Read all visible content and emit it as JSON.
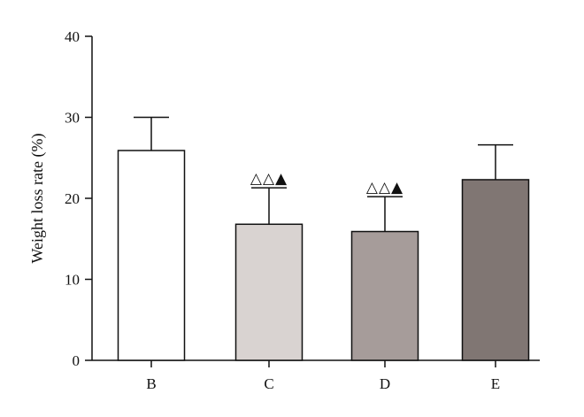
{
  "chart_data": {
    "type": "bar",
    "title": "",
    "xlabel": "",
    "ylabel": "Weight loss rate (%)",
    "ylim": [
      0,
      40
    ],
    "yticks": [
      0,
      10,
      20,
      30,
      40
    ],
    "categories": [
      "B",
      "C",
      "D",
      "E"
    ],
    "values": [
      25.9,
      16.8,
      15.9,
      22.3
    ],
    "errors": [
      4.1,
      4.5,
      4.3,
      4.3
    ],
    "colors": [
      "#ffffff",
      "#d9d3d1",
      "#a69c9a",
      "#807673"
    ],
    "annotations": [
      "",
      "△△▲",
      "△△▲",
      ""
    ],
    "grid": false,
    "legend": "none"
  }
}
